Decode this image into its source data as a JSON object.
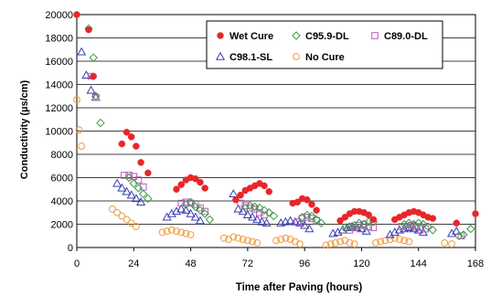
{
  "chart_data": {
    "type": "scatter",
    "title": "",
    "xlabel": "Time after Paving (hours)",
    "ylabel": "Conductivity (µs/cm)",
    "xlim": [
      0,
      168
    ],
    "ylim": [
      0,
      20000
    ],
    "xticks": [
      0,
      24,
      48,
      72,
      96,
      120,
      144,
      168
    ],
    "yticks": [
      0,
      2000,
      4000,
      6000,
      8000,
      10000,
      12000,
      14000,
      16000,
      18000,
      20000
    ],
    "xtick_labels": [
      "0",
      "24",
      "48",
      "72",
      "96",
      "120",
      "144",
      "168"
    ],
    "ytick_labels": [
      "0",
      "2000",
      "4000",
      "6000",
      "8000",
      "10000",
      "12000",
      "14000",
      "16000",
      "18000",
      "20000"
    ],
    "grid": "horizontal",
    "legend_position": "top-right",
    "series": [
      {
        "name": "Wet Cure",
        "marker": "filled-circle",
        "color": "#e8262a",
        "points": [
          [
            0,
            20000
          ],
          [
            5,
            18700
          ],
          [
            7,
            14700
          ],
          [
            19,
            8900
          ],
          [
            21,
            9900
          ],
          [
            23,
            9500
          ],
          [
            25,
            8700
          ],
          [
            27,
            7300
          ],
          [
            30,
            6400
          ],
          [
            42,
            5000
          ],
          [
            44,
            5400
          ],
          [
            46,
            5800
          ],
          [
            48,
            6000
          ],
          [
            50,
            5900
          ],
          [
            52,
            5600
          ],
          [
            54,
            5100
          ],
          [
            67,
            4100
          ],
          [
            69,
            4500
          ],
          [
            71,
            4900
          ],
          [
            73,
            5100
          ],
          [
            75,
            5300
          ],
          [
            77,
            5500
          ],
          [
            79,
            5300
          ],
          [
            81,
            4800
          ],
          [
            91,
            3800
          ],
          [
            93,
            3900
          ],
          [
            95,
            4200
          ],
          [
            97,
            4100
          ],
          [
            99,
            3700
          ],
          [
            101,
            3200
          ],
          [
            111,
            2300
          ],
          [
            113,
            2600
          ],
          [
            115,
            2900
          ],
          [
            117,
            3100
          ],
          [
            119,
            3100
          ],
          [
            121,
            3000
          ],
          [
            123,
            2800
          ],
          [
            125,
            2400
          ],
          [
            134,
            2400
          ],
          [
            136,
            2600
          ],
          [
            138,
            2800
          ],
          [
            140,
            3000
          ],
          [
            142,
            3100
          ],
          [
            144,
            3000
          ],
          [
            146,
            2800
          ],
          [
            148,
            2600
          ],
          [
            150,
            2500
          ],
          [
            160,
            2100
          ],
          [
            168,
            2900
          ]
        ]
      },
      {
        "name": "C95.9-DL",
        "marker": "open-diamond",
        "color": "#3c9a47",
        "points": [
          [
            5,
            18800
          ],
          [
            7,
            16300
          ],
          [
            8,
            13000
          ],
          [
            10,
            10700
          ],
          [
            22,
            6000
          ],
          [
            24,
            5500
          ],
          [
            26,
            5100
          ],
          [
            28,
            4600
          ],
          [
            30,
            4200
          ],
          [
            46,
            3700
          ],
          [
            48,
            3900
          ],
          [
            50,
            3500
          ],
          [
            52,
            3200
          ],
          [
            54,
            2900
          ],
          [
            56,
            2400
          ],
          [
            71,
            3400
          ],
          [
            73,
            3600
          ],
          [
            75,
            3500
          ],
          [
            77,
            3400
          ],
          [
            79,
            3200
          ],
          [
            81,
            3000
          ],
          [
            83,
            2700
          ],
          [
            95,
            2600
          ],
          [
            97,
            2800
          ],
          [
            99,
            2700
          ],
          [
            101,
            2400
          ],
          [
            103,
            2100
          ],
          [
            113,
            1700
          ],
          [
            115,
            1800
          ],
          [
            117,
            1900
          ],
          [
            119,
            2100
          ],
          [
            121,
            2000
          ],
          [
            123,
            2200
          ],
          [
            125,
            2200
          ],
          [
            138,
            2000
          ],
          [
            140,
            2100
          ],
          [
            142,
            2000
          ],
          [
            144,
            2100
          ],
          [
            146,
            2000
          ],
          [
            148,
            1800
          ],
          [
            150,
            1500
          ],
          [
            161,
            1000
          ],
          [
            163,
            1100
          ],
          [
            166,
            1600
          ]
        ]
      },
      {
        "name": "C89.0-DL",
        "marker": "open-square",
        "color": "#b85cb8",
        "points": [
          [
            6,
            14700
          ],
          [
            8,
            12900
          ],
          [
            20,
            6200
          ],
          [
            22,
            6200
          ],
          [
            24,
            6100
          ],
          [
            26,
            5800
          ],
          [
            28,
            5200
          ],
          [
            44,
            3800
          ],
          [
            46,
            3900
          ],
          [
            48,
            3800
          ],
          [
            50,
            3700
          ],
          [
            52,
            3400
          ],
          [
            54,
            3100
          ],
          [
            69,
            3800
          ],
          [
            71,
            3600
          ],
          [
            73,
            3400
          ],
          [
            75,
            3300
          ],
          [
            77,
            3000
          ],
          [
            79,
            2800
          ],
          [
            93,
            2200
          ],
          [
            95,
            2500
          ],
          [
            97,
            2600
          ],
          [
            99,
            2500
          ],
          [
            101,
            2300
          ],
          [
            115,
            1500
          ],
          [
            117,
            1700
          ],
          [
            119,
            1900
          ],
          [
            121,
            2000
          ],
          [
            123,
            1800
          ],
          [
            125,
            1700
          ],
          [
            137,
            1800
          ],
          [
            139,
            1800
          ],
          [
            141,
            1900
          ],
          [
            143,
            1800
          ],
          [
            145,
            1700
          ],
          [
            147,
            1600
          ],
          [
            162,
            1000
          ]
        ]
      },
      {
        "name": "C98.1-SL",
        "marker": "open-triangle",
        "color": "#3a3fb4",
        "points": [
          [
            2,
            16800
          ],
          [
            4,
            14800
          ],
          [
            6,
            13500
          ],
          [
            8,
            12900
          ],
          [
            17,
            5500
          ],
          [
            19,
            5100
          ],
          [
            21,
            4800
          ],
          [
            23,
            4500
          ],
          [
            25,
            4200
          ],
          [
            27,
            3900
          ],
          [
            38,
            2600
          ],
          [
            40,
            2900
          ],
          [
            42,
            3100
          ],
          [
            44,
            3300
          ],
          [
            46,
            3200
          ],
          [
            48,
            2900
          ],
          [
            50,
            2600
          ],
          [
            52,
            2300
          ],
          [
            66,
            4600
          ],
          [
            68,
            3300
          ],
          [
            70,
            3100
          ],
          [
            72,
            2800
          ],
          [
            74,
            2600
          ],
          [
            76,
            2400
          ],
          [
            78,
            2200
          ],
          [
            80,
            2100
          ],
          [
            86,
            2100
          ],
          [
            88,
            2200
          ],
          [
            90,
            2300
          ],
          [
            92,
            2200
          ],
          [
            94,
            2100
          ],
          [
            96,
            1900
          ],
          [
            98,
            1600
          ],
          [
            108,
            1200
          ],
          [
            110,
            1300
          ],
          [
            112,
            1500
          ],
          [
            114,
            1700
          ],
          [
            116,
            1800
          ],
          [
            118,
            1700
          ],
          [
            120,
            1600
          ],
          [
            122,
            1400
          ],
          [
            132,
            1100
          ],
          [
            134,
            1300
          ],
          [
            136,
            1500
          ],
          [
            138,
            1600
          ],
          [
            140,
            1700
          ],
          [
            142,
            1600
          ],
          [
            144,
            1500
          ],
          [
            146,
            1300
          ],
          [
            158,
            1200
          ],
          [
            160,
            1400
          ]
        ]
      },
      {
        "name": "No Cure",
        "marker": "open-circle",
        "color": "#f09a3a",
        "points": [
          [
            0,
            12700
          ],
          [
            1,
            10100
          ],
          [
            2,
            8700
          ],
          [
            15,
            3300
          ],
          [
            17,
            3000
          ],
          [
            19,
            2700
          ],
          [
            21,
            2400
          ],
          [
            23,
            2100
          ],
          [
            25,
            1800
          ],
          [
            36,
            1300
          ],
          [
            38,
            1400
          ],
          [
            40,
            1500
          ],
          [
            42,
            1400
          ],
          [
            44,
            1300
          ],
          [
            46,
            1200
          ],
          [
            48,
            1100
          ],
          [
            62,
            800
          ],
          [
            64,
            700
          ],
          [
            66,
            900
          ],
          [
            68,
            800
          ],
          [
            70,
            700
          ],
          [
            72,
            600
          ],
          [
            74,
            500
          ],
          [
            76,
            400
          ],
          [
            84,
            600
          ],
          [
            86,
            700
          ],
          [
            88,
            800
          ],
          [
            90,
            700
          ],
          [
            92,
            500
          ],
          [
            94,
            300
          ],
          [
            105,
            200
          ],
          [
            107,
            300
          ],
          [
            109,
            400
          ],
          [
            111,
            500
          ],
          [
            113,
            600
          ],
          [
            115,
            400
          ],
          [
            117,
            300
          ],
          [
            126,
            400
          ],
          [
            128,
            500
          ],
          [
            130,
            600
          ],
          [
            132,
            700
          ],
          [
            134,
            800
          ],
          [
            136,
            700
          ],
          [
            138,
            600
          ],
          [
            140,
            500
          ],
          [
            155,
            400
          ],
          [
            158,
            300
          ]
        ]
      }
    ]
  }
}
